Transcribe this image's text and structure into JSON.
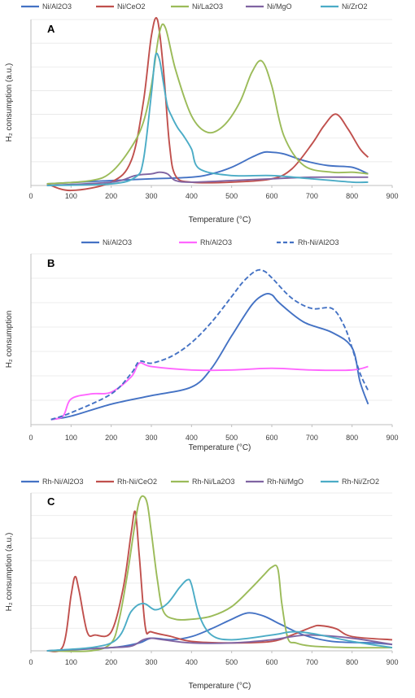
{
  "chart_data": [
    {
      "type": "line",
      "panel_label": "A",
      "xlabel": "Temperature (°C)",
      "ylabel": "H₂ consumption (a.u.)",
      "xlim": [
        0,
        900
      ],
      "ylim": [
        0,
        100
      ],
      "xticks": [
        "0",
        "100",
        "200",
        "300",
        "400",
        "500",
        "600",
        "700",
        "800",
        "900"
      ],
      "grid": "horizontal",
      "legend": "top",
      "series": [
        {
          "name": "Ni/Al2O3",
          "color": "#4472C4",
          "dashed": false,
          "x": [
            40,
            200,
            300,
            400,
            450,
            500,
            550,
            580,
            600,
            630,
            680,
            740,
            800,
            840
          ],
          "y": [
            1,
            3,
            4,
            5,
            7,
            11,
            17,
            20,
            20,
            19,
            15,
            12,
            11,
            7
          ]
        },
        {
          "name": "Ni/CeO2",
          "color": "#C0504D",
          "dashed": false,
          "x": [
            40,
            100,
            200,
            250,
            280,
            300,
            315,
            330,
            345,
            360,
            400,
            500,
            600,
            650,
            700,
            730,
            760,
            790,
            820,
            840
          ],
          "y": [
            1,
            -3,
            2,
            15,
            50,
            90,
            100,
            70,
            25,
            6,
            2,
            2,
            4,
            10,
            25,
            36,
            43,
            34,
            22,
            17
          ]
        },
        {
          "name": "Ni/La2O3",
          "color": "#9BBB59",
          "dashed": false,
          "x": [
            40,
            150,
            200,
            250,
            280,
            300,
            320,
            335,
            360,
            400,
            440,
            480,
            520,
            550,
            575,
            600,
            630,
            680,
            750,
            800,
            840
          ],
          "y": [
            1,
            3,
            8,
            23,
            38,
            60,
            92,
            95,
            70,
            42,
            32,
            36,
            50,
            68,
            75,
            60,
            30,
            12,
            8,
            8,
            7
          ]
        },
        {
          "name": "Ni/MgO",
          "color": "#8064A2",
          "dashed": false,
          "x": [
            40,
            200,
            260,
            300,
            320,
            340,
            360,
            400,
            500,
            600,
            700,
            800,
            840
          ],
          "y": [
            0,
            2,
            6,
            7,
            8,
            7,
            3,
            2,
            3,
            4,
            5,
            5,
            5
          ]
        },
        {
          "name": "Ni/ZrO2",
          "color": "#4BACC6",
          "dashed": false,
          "x": [
            40,
            200,
            260,
            280,
            300,
            310,
            320,
            330,
            340,
            350,
            365,
            380,
            400,
            420,
            500,
            600,
            700,
            800,
            840
          ],
          "y": [
            0,
            1,
            5,
            15,
            55,
            78,
            76,
            62,
            48,
            42,
            35,
            30,
            22,
            10,
            6,
            6,
            4,
            2,
            2
          ]
        }
      ]
    },
    {
      "type": "line",
      "panel_label": "B",
      "xlabel": "Temperature (°C)",
      "ylabel": "H₂ consumption",
      "xlim": [
        0,
        900
      ],
      "ylim": [
        0,
        100
      ],
      "xticks": [
        "0",
        "100",
        "200",
        "300",
        "400",
        "500",
        "600",
        "700",
        "800",
        "900"
      ],
      "grid": "horizontal",
      "legend": "top",
      "series": [
        {
          "name": "Ni/Al2O3",
          "color": "#4472C4",
          "dashed": false,
          "x": [
            50,
            100,
            200,
            300,
            400,
            450,
            500,
            550,
            580,
            600,
            620,
            680,
            750,
            800,
            820,
            840
          ],
          "y": [
            3,
            5,
            12,
            17,
            22,
            33,
            52,
            70,
            76,
            76,
            71,
            60,
            54,
            45,
            25,
            12
          ]
        },
        {
          "name": "Rh/Al2O3",
          "color": "#FF66FF",
          "dashed": false,
          "x": [
            50,
            80,
            100,
            150,
            200,
            250,
            270,
            300,
            400,
            500,
            600,
            700,
            800,
            840
          ],
          "y": [
            3,
            5,
            15,
            18,
            19,
            28,
            36,
            34,
            32,
            32,
            33,
            32,
            32,
            34
          ]
        },
        {
          "name": "Rh-Ni/Al2O3",
          "color": "#4472C4",
          "dashed": true,
          "x": [
            50,
            100,
            200,
            250,
            270,
            300,
            350,
            400,
            450,
            500,
            530,
            560,
            580,
            600,
            650,
            700,
            750,
            780,
            800,
            820,
            840
          ],
          "y": [
            3,
            7,
            18,
            30,
            37,
            36,
            40,
            48,
            60,
            75,
            84,
            90,
            90,
            86,
            74,
            68,
            68,
            58,
            45,
            30,
            20
          ]
        }
      ]
    },
    {
      "type": "line",
      "panel_label": "C",
      "xlabel": "Temperature (°C)",
      "ylabel": "H₂ consumption (a.u.)",
      "xlim": [
        0,
        900
      ],
      "ylim": [
        0,
        100
      ],
      "xticks": [
        "0",
        "100",
        "200",
        "300",
        "400",
        "500",
        "600",
        "700",
        "800",
        "900"
      ],
      "grid": "horizontal",
      "legend": "top",
      "series": [
        {
          "name": "Rh-Ni/Al2O3",
          "color": "#4472C4",
          "dashed": false,
          "x": [
            40,
            200,
            270,
            300,
            350,
            400,
            450,
            500,
            540,
            580,
            620,
            680,
            750,
            850,
            900
          ],
          "y": [
            0,
            2,
            5,
            8,
            7,
            9,
            14,
            20,
            24,
            22,
            17,
            10,
            6,
            5,
            4
          ]
        },
        {
          "name": "Rh-Ni/CeO2",
          "color": "#C0504D",
          "dashed": false,
          "x": [
            40,
            80,
            100,
            110,
            120,
            140,
            160,
            200,
            230,
            250,
            260,
            270,
            285,
            300,
            350,
            400,
            500,
            600,
            650,
            700,
            720,
            760,
            800,
            900
          ],
          "y": [
            0,
            3,
            35,
            47,
            38,
            12,
            10,
            12,
            40,
            75,
            88,
            60,
            15,
            12,
            9,
            6,
            5,
            6,
            10,
            15,
            16,
            14,
            9,
            7
          ]
        },
        {
          "name": "Rh-Ni/La2O3",
          "color": "#9BBB59",
          "dashed": false,
          "x": [
            40,
            150,
            200,
            220,
            240,
            260,
            270,
            280,
            290,
            300,
            315,
            330,
            360,
            400,
            450,
            500,
            550,
            580,
            600,
            615,
            625,
            640,
            660,
            700,
            800,
            900
          ],
          "y": [
            0,
            0,
            5,
            20,
            48,
            82,
            95,
            98,
            93,
            75,
            45,
            25,
            20,
            20,
            22,
            28,
            40,
            48,
            53,
            52,
            30,
            8,
            5,
            3,
            2,
            2
          ]
        },
        {
          "name": "Rh-Ni/MgO",
          "color": "#8064A2",
          "dashed": false,
          "x": [
            40,
            200,
            250,
            280,
            300,
            330,
            400,
            500,
            600,
            650,
            700,
            800,
            900
          ],
          "y": [
            0,
            2,
            3,
            7,
            8,
            7,
            5,
            5,
            7,
            9,
            10,
            8,
            4
          ]
        },
        {
          "name": "Rh-Ni/ZrO2",
          "color": "#4BACC6",
          "dashed": false,
          "x": [
            40,
            200,
            250,
            280,
            310,
            340,
            370,
            390,
            400,
            420,
            450,
            500,
            600,
            650,
            700,
            800,
            900
          ],
          "y": [
            0,
            5,
            25,
            30,
            26,
            30,
            40,
            45,
            42,
            22,
            10,
            7,
            10,
            12,
            11,
            6,
            2
          ]
        }
      ]
    }
  ]
}
